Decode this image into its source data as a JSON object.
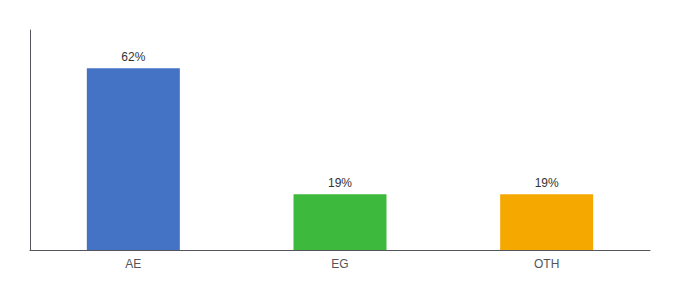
{
  "chart_data": {
    "type": "bar",
    "categories": [
      "AE",
      "EG",
      "OTH"
    ],
    "values": [
      62,
      19,
      19
    ],
    "value_labels": [
      "62%",
      "19%",
      "19%"
    ],
    "colors": [
      "#4472c4",
      "#3dba3d",
      "#f5a800"
    ],
    "ylim": [
      0,
      75
    ],
    "data_labels": true,
    "tick_labels": "x",
    "grid": false
  }
}
